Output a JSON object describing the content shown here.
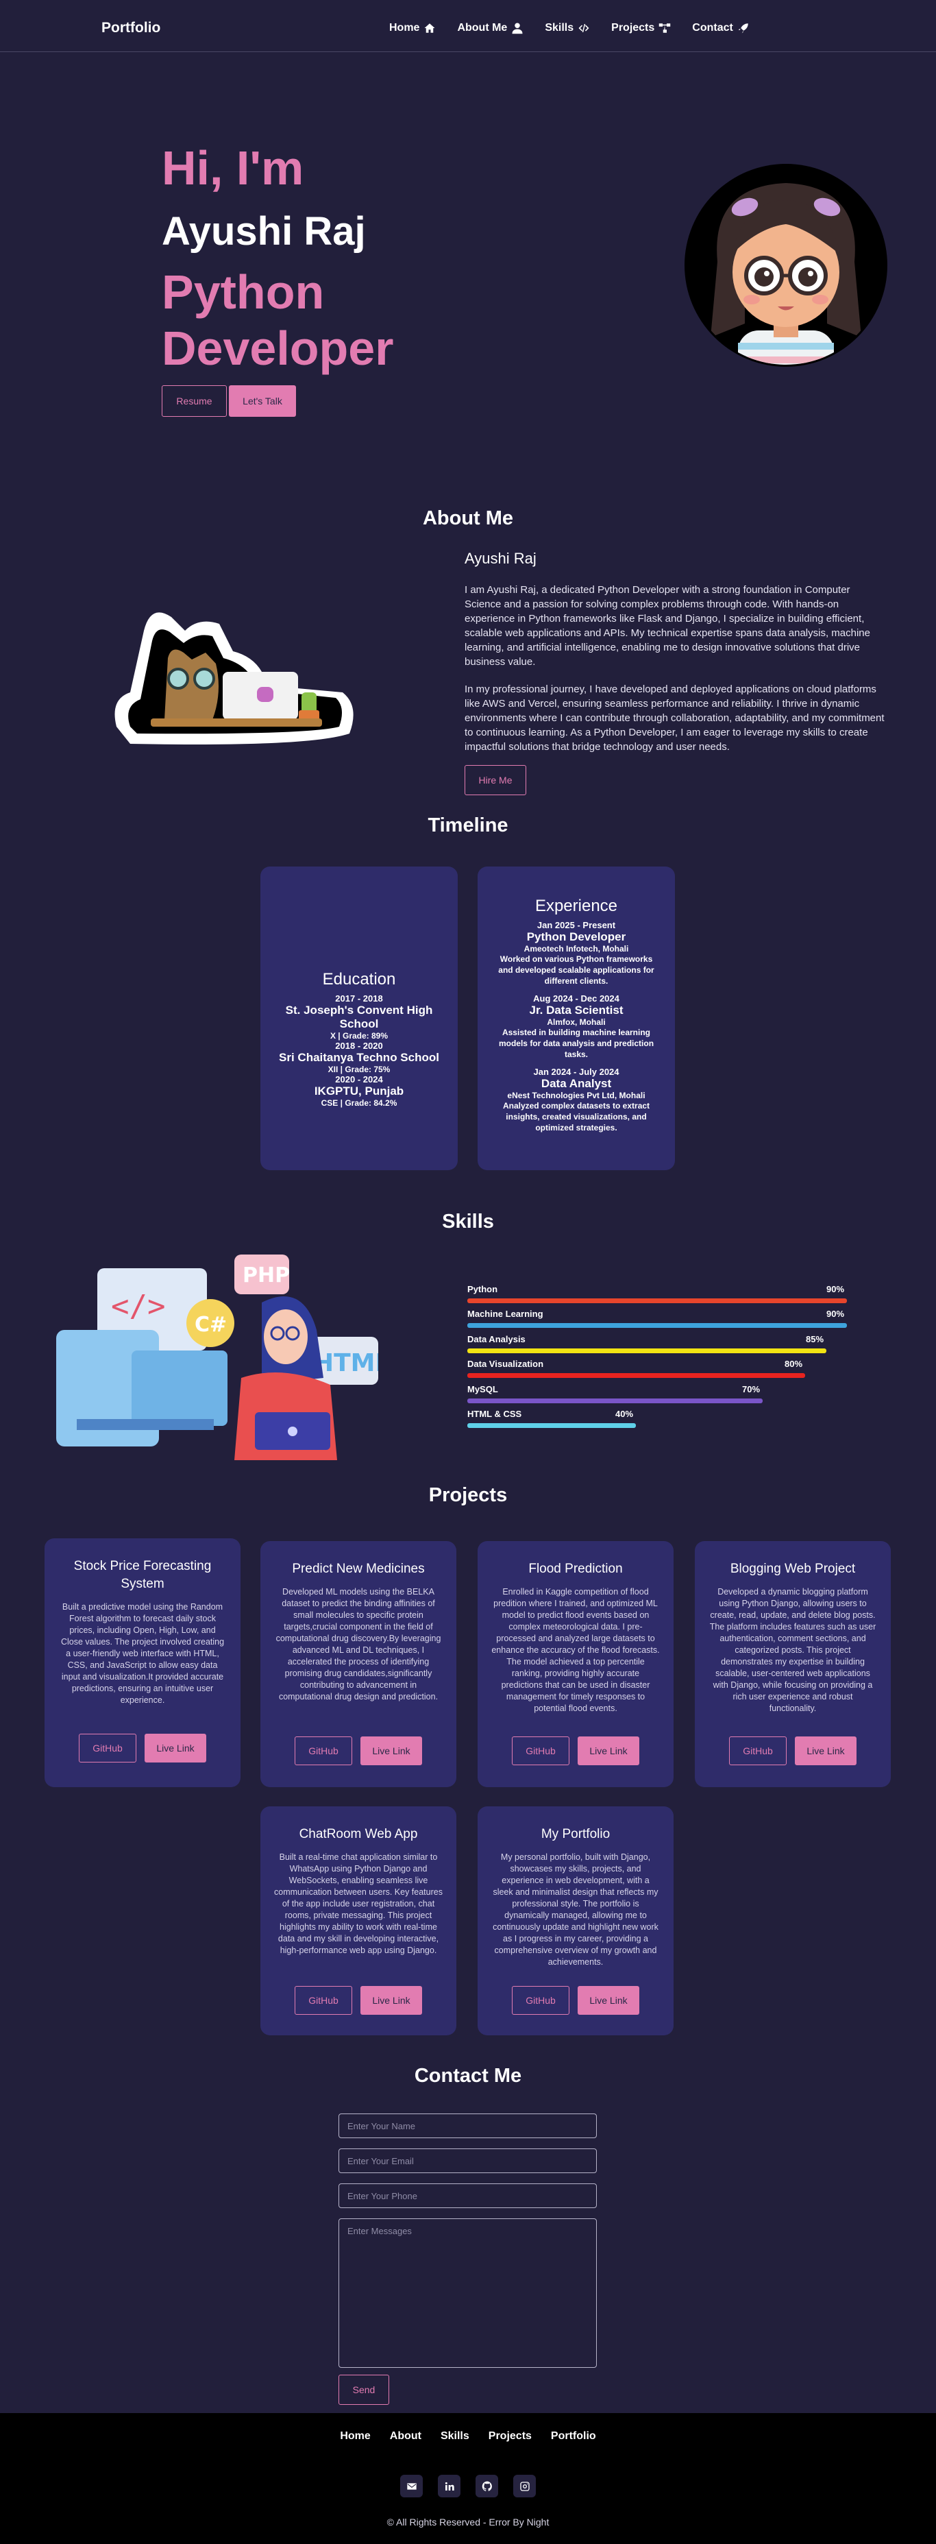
{
  "nav": {
    "brand": "Portfolio",
    "links": [
      {
        "label": "Home",
        "icon": "home-icon"
      },
      {
        "label": "About Me",
        "icon": "user-icon"
      },
      {
        "label": "Skills",
        "icon": "code-icon"
      },
      {
        "label": "Projects",
        "icon": "project-diagram-icon"
      },
      {
        "label": "Contact",
        "icon": "rocket-icon"
      }
    ]
  },
  "hero": {
    "greeting": "Hi, I'm",
    "name": "Ayushi Raj",
    "role": "Python Developer",
    "resume_label": "Resume",
    "talk_label": "Let's Talk"
  },
  "about": {
    "title": "About Me",
    "name": "Ayushi Raj",
    "paragraph1": "I am Ayushi Raj, a dedicated Python Developer with a strong foundation in Computer Science and a passion for solving complex problems through code. With hands-on experience in Python frameworks like Flask and Django, I specialize in building efficient, scalable web applications and APIs. My technical expertise spans data analysis, machine learning, and artificial intelligence, enabling me to design innovative solutions that drive business value.",
    "paragraph2": "In my professional journey, I have developed and deployed applications on cloud platforms like AWS and Vercel, ensuring seamless performance and reliability. I thrive in dynamic environments where I can contribute through collaboration, adaptability, and my commitment to continuous learning. As a Python Developer, I am eager to leverage my skills to create impactful solutions that bridge technology and user needs.",
    "hire_label": "Hire Me"
  },
  "timeline": {
    "title": "Timeline",
    "education": {
      "heading": "Education",
      "entries": [
        {
          "date": "2017 - 2018",
          "school": "St. Joseph's Convent High School",
          "grade": "X | Grade: 89%"
        },
        {
          "date": "2018 - 2020",
          "school": "Sri Chaitanya Techno School",
          "grade": "XII | Grade: 75%"
        },
        {
          "date": "2020 - 2024",
          "school": "IKGPTU, Punjab",
          "grade": "CSE | Grade: 84.2%"
        }
      ]
    },
    "experience": {
      "heading": "Experience",
      "entries": [
        {
          "date": "Jan 2025 - Present",
          "title": "Python Developer",
          "company": "Ameotech Infotech, Mohali",
          "desc": "Worked on various Python frameworks and developed scalable applications for different clients."
        },
        {
          "date": "Aug 2024 - Dec 2024",
          "title": "Jr. Data Scientist",
          "company": "Almfox, Mohali",
          "desc": "Assisted in building machine learning models for data analysis and prediction tasks."
        },
        {
          "date": "Jan 2024 - July 2024",
          "title": "Data Analyst",
          "company": "eNest Technologies Pvt Ltd, Mohali",
          "desc": "Analyzed complex datasets to extract insights, created visualizations, and optimized strategies."
        }
      ]
    }
  },
  "skills": {
    "title": "Skills",
    "items": [
      {
        "name": "Python",
        "percent": 90,
        "label": "90%",
        "color": "#e8452c"
      },
      {
        "name": "Machine Learning",
        "percent": 90,
        "label": "90%",
        "color": "#3ea3dc"
      },
      {
        "name": "Data Analysis",
        "percent": 85,
        "label": "85%",
        "color": "#f2e313"
      },
      {
        "name": "Data Visualization",
        "percent": 80,
        "label": "80%",
        "color": "#e8231f"
      },
      {
        "name": "MySQL",
        "percent": 70,
        "label": "70%",
        "color": "#7a55c8"
      },
      {
        "name": "HTML & CSS",
        "percent": 40,
        "label": "40%",
        "color": "#5fd0e8"
      }
    ]
  },
  "projects": {
    "title": "Projects",
    "github_label": "GitHub",
    "live_label": "Live Link",
    "items": [
      {
        "title": "Stock Price Forecasting System",
        "desc": "Built a predictive model using the Random Forest algorithm to forecast daily stock prices, including Open, High, Low, and Close values. The project involved creating a user-friendly web interface with HTML, CSS, and JavaScript to allow easy data input and visualization.It provided accurate predictions, ensuring an intuitive user experience."
      },
      {
        "title": "Predict New Medicines",
        "desc": "Developed ML models using the BELKA dataset to predict the binding affinities of small molecules to specific protein targets,crucial component in the field of computational drug discovery.By leveraging advanced ML and DL techniques, I accelerated the process of identifying promising drug candidates,significantly contributing to advancement in computational drug design and prediction."
      },
      {
        "title": "Flood Prediction",
        "desc": "Enrolled in Kaggle competition of flood predition where I trained, and optimized ML model to predict flood events based on complex meteorological data. I pre-processed and analyzed large datasets to enhance the accuracy of the flood forecasts. The model achieved a top percentile ranking, providing highly accurate predictions that can be used in disaster management for timely responses to potential flood events."
      },
      {
        "title": "Blogging Web Project",
        "desc": "Developed a dynamic blogging platform using Python Django, allowing users to create, read, update, and delete blog posts. The platform includes features such as user authentication, comment sections, and categorized posts. This project demonstrates my expertise in building scalable, user-centered web applications with Django, while focusing on providing a rich user experience and robust functionality."
      },
      {
        "title": "ChatRoom Web App",
        "desc": "Built a real-time chat application similar to WhatsApp using Python Django and WebSockets, enabling seamless live communication between users. Key features of the app include user registration, chat rooms, private messaging. This project highlights my ability to work with real-time data and my skill in developing interactive, high-performance web app using Django."
      },
      {
        "title": "My Portfolio",
        "desc": "My personal portfolio, built with Django, showcases my skills, projects, and experience in web development, with a sleek and minimalist design that reflects my professional style. The portfolio is dynamically managed, allowing me to continuously update and highlight new work as I progress in my career, providing a comprehensive overview of my growth and achievements."
      }
    ]
  },
  "contact": {
    "title": "Contact Me",
    "name_placeholder": "Enter Your Name",
    "email_placeholder": "Enter Your Email",
    "phone_placeholder": "Enter Your Phone",
    "message_placeholder": "Enter Messages",
    "send_label": "Send"
  },
  "footer": {
    "links": [
      "Home",
      "About",
      "Skills",
      "Projects",
      "Portfolio"
    ],
    "socials": [
      "mail-icon",
      "linkedin-icon",
      "github-icon",
      "instagram-icon"
    ],
    "copyright": "© All Rights Reserved - Error By Night"
  },
  "colors": {
    "background": "#221f3b",
    "accent": "#e27cb1",
    "card": "#2f2c6a",
    "footer": "#000000"
  }
}
